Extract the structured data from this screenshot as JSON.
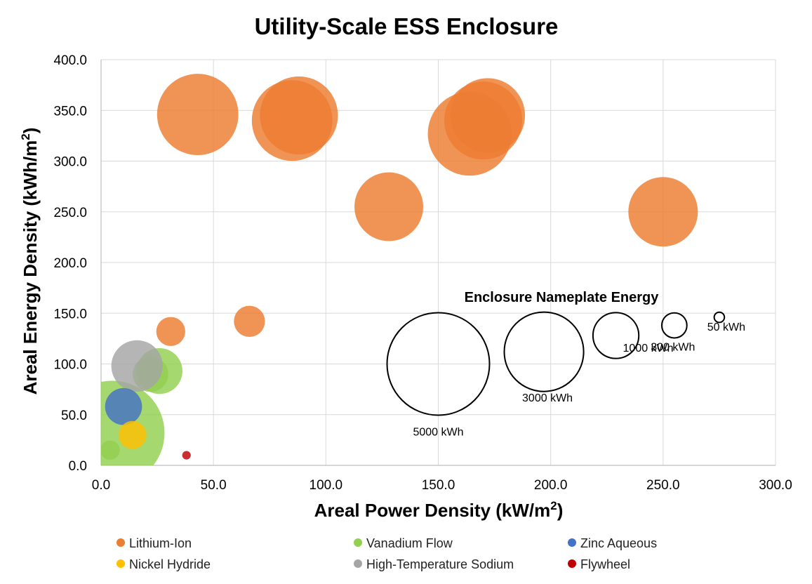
{
  "chart_data": {
    "type": "bubble",
    "title": "Utility-Scale ESS Enclosure",
    "xlabel": "Areal Power Density (kW/m",
    "xlabel_sup": "2",
    "xlabel_end": ")",
    "ylabel": "Areal Energy Density (kWh/m",
    "ylabel_sup": "2",
    "ylabel_end": ")",
    "xlim": [
      0,
      300
    ],
    "ylim": [
      0,
      400
    ],
    "x_ticks": [
      "0.0",
      "50.0",
      "100.0",
      "150.0",
      "200.0",
      "250.0",
      "300.0"
    ],
    "y_ticks": [
      "0.0",
      "50.0",
      "100.0",
      "150.0",
      "200.0",
      "250.0",
      "300.0",
      "350.0",
      "400.0"
    ],
    "grid": true,
    "series": [
      {
        "name": "Lithium-Ion",
        "color": "#ED7D31",
        "points": [
          {
            "x": 43,
            "y": 346,
            "size_kwh": 3150
          },
          {
            "x": 85,
            "y": 340,
            "size_kwh": 3100
          },
          {
            "x": 88,
            "y": 345,
            "size_kwh": 2900
          },
          {
            "x": 128,
            "y": 255,
            "size_kwh": 2250
          },
          {
            "x": 164,
            "y": 327,
            "size_kwh": 3350
          },
          {
            "x": 170,
            "y": 340,
            "size_kwh": 2900
          },
          {
            "x": 172,
            "y": 345,
            "size_kwh": 2650
          },
          {
            "x": 250,
            "y": 250,
            "size_kwh": 2300
          },
          {
            "x": 31,
            "y": 132,
            "size_kwh": 400
          },
          {
            "x": 66,
            "y": 142,
            "size_kwh": 460
          }
        ]
      },
      {
        "name": "Vanadium Flow",
        "color": "#92D050",
        "points": [
          {
            "x": 5,
            "y": 32,
            "size_kwh": 5200
          },
          {
            "x": 26,
            "y": 93,
            "size_kwh": 1000
          },
          {
            "x": 22,
            "y": 90,
            "size_kwh": 600
          },
          {
            "x": 4,
            "y": 15,
            "size_kwh": 180
          }
        ]
      },
      {
        "name": "Zinc Aqueous",
        "color": "#4472C4",
        "points": [
          {
            "x": 10,
            "y": 58,
            "size_kwh": 650
          }
        ]
      },
      {
        "name": "Nickel Hydride",
        "color": "#FFC000",
        "points": [
          {
            "x": 14,
            "y": 30,
            "size_kwh": 370
          }
        ]
      },
      {
        "name": "High-Temperature Sodium",
        "color": "#A5A5A5",
        "points": [
          {
            "x": 16,
            "y": 98,
            "size_kwh": 1260
          }
        ]
      },
      {
        "name": "Flywheel",
        "color": "#C00000",
        "points": [
          {
            "x": 38,
            "y": 10,
            "size_kwh": 35
          }
        ]
      }
    ],
    "size_legend": {
      "title": "Enclosure Nameplate Energy",
      "items": [
        {
          "label": "5000 kWh",
          "kwh": 5000,
          "x": 150,
          "y": 100
        },
        {
          "label": "3000 kWh",
          "kwh": 3000,
          "x": 197,
          "y": 112
        },
        {
          "label": "1000 kWh",
          "kwh": 1000,
          "x": 229,
          "y": 128
        },
        {
          "label": "300 kWh",
          "kwh": 300,
          "x": 255,
          "y": 138
        },
        {
          "label": "50 kWh",
          "kwh": 50,
          "x": 275,
          "y": 146
        }
      ]
    }
  }
}
